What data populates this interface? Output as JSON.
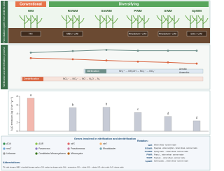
{
  "header": {
    "conventional": "Conventional",
    "diversifying": "Diversifying",
    "side_label": "Two rotation cycles from 2016 to 2022"
  },
  "soil_labels": [
    "TN↑",
    "MBC↑ C/N↑",
    "Rhizobium↑ C/N↑",
    "Rhizobium↑ C/N↑",
    "SOC↑ C/N↑"
  ],
  "process": {
    "side_label": "Nitrification and denitrification process",
    "nitrification_steps": "NH₄⁺ → NH₂OH → NO₂⁻ → NO₃⁻",
    "denitrification_steps": "NO₃⁻ → NO₂⁻ → NO → N₂O → N₂",
    "aerobic": "Aerobic",
    "anaerobic": "Anaerobic"
  },
  "chart_data": [
    {
      "type": "line",
      "categories": [
        "WM",
        "RSWM",
        "SmWM",
        "PWM",
        "SWM",
        "SpWM"
      ],
      "ylim": [
        0,
        1
      ],
      "series": [
        {
          "name": "Nitrification",
          "color": "#6e8f8a",
          "values": [
            0.7,
            0.78,
            0.84,
            0.8,
            0.8,
            0.8
          ]
        },
        {
          "name": "Denitrification",
          "color": "#d9643f",
          "values": [
            0.42,
            0.36,
            0.3,
            0.24,
            0.2,
            0.14
          ]
        }
      ]
    },
    {
      "type": "bar",
      "ylabel": "N₂O emission (kg N ha⁻¹ yr⁻¹)",
      "ylim": [
        0,
        8
      ],
      "yticks": [
        0,
        2,
        4,
        6,
        8
      ],
      "values": [
        7.6,
        5.4,
        5.5,
        4.3,
        3.4,
        2.4
      ],
      "significance": [
        "a",
        "b",
        "b",
        "c",
        "d",
        "d"
      ],
      "colors": [
        "#f3b8ae",
        "#c7cbd6",
        "#c7cbd6",
        "#c7cbd6",
        "#c7cbd6",
        "#c7cbd6"
      ]
    }
  ],
  "legend": {
    "title": "Genes involved in nitrification and denitrification",
    "items": [
      {
        "name": "AOA",
        "color": "#2f8f4e"
      },
      {
        "name": "AOB",
        "color": "#8bc34a"
      },
      {
        "name": "nirS",
        "color": "#e06666"
      },
      {
        "name": "nirK",
        "color": "#f6b26b"
      },
      {
        "name": "nosZ",
        "color": "#6fa8dc"
      },
      {
        "name": "Paracoccus",
        "color": "#8e7cc3"
      },
      {
        "name": "Pseudomonas",
        "color": "#c27ba0"
      },
      {
        "name": "Rhodobacter",
        "color": "#76a5af"
      },
      {
        "name": "Unknown",
        "color": "#999999"
      },
      {
        "name": "Candidatus Nitrososphaera",
        "color": "#38761d"
      },
      {
        "name": "Nitrosospira",
        "color": "#b45f06"
      }
    ],
    "abbrev_title": "Abbreviations:",
    "abbrev_text": "TN, total nitrogen; MBC, microbial biomass carbon; C/N, carbon to nitrogen ratio; NH₄⁺, ammonium; NO₂⁻, nitrite; NO₃⁻, nitrate; NO, nitric oxide; N₂O, nitrous oxide"
  },
  "rotation": {
    "title": "Rotation:",
    "items": [
      {
        "code": "WM:",
        "text": "Winter wheat - summer maize"
      },
      {
        "code": "RSWM:",
        "text": "Ryegrass - winter sorghum - winter wheat - summer maize"
      },
      {
        "code": "SmWM:",
        "text": "Spring maize → winter wheat - summer maize"
      },
      {
        "code": "PWM:",
        "text": "Peanut → winter wheat - summer maize"
      },
      {
        "code": "SWM:",
        "text": "Soybean → winter wheat - summer maize"
      },
      {
        "code": "SpWM:",
        "text": "Sweet potato → winter wheat - summer maize"
      }
    ]
  }
}
